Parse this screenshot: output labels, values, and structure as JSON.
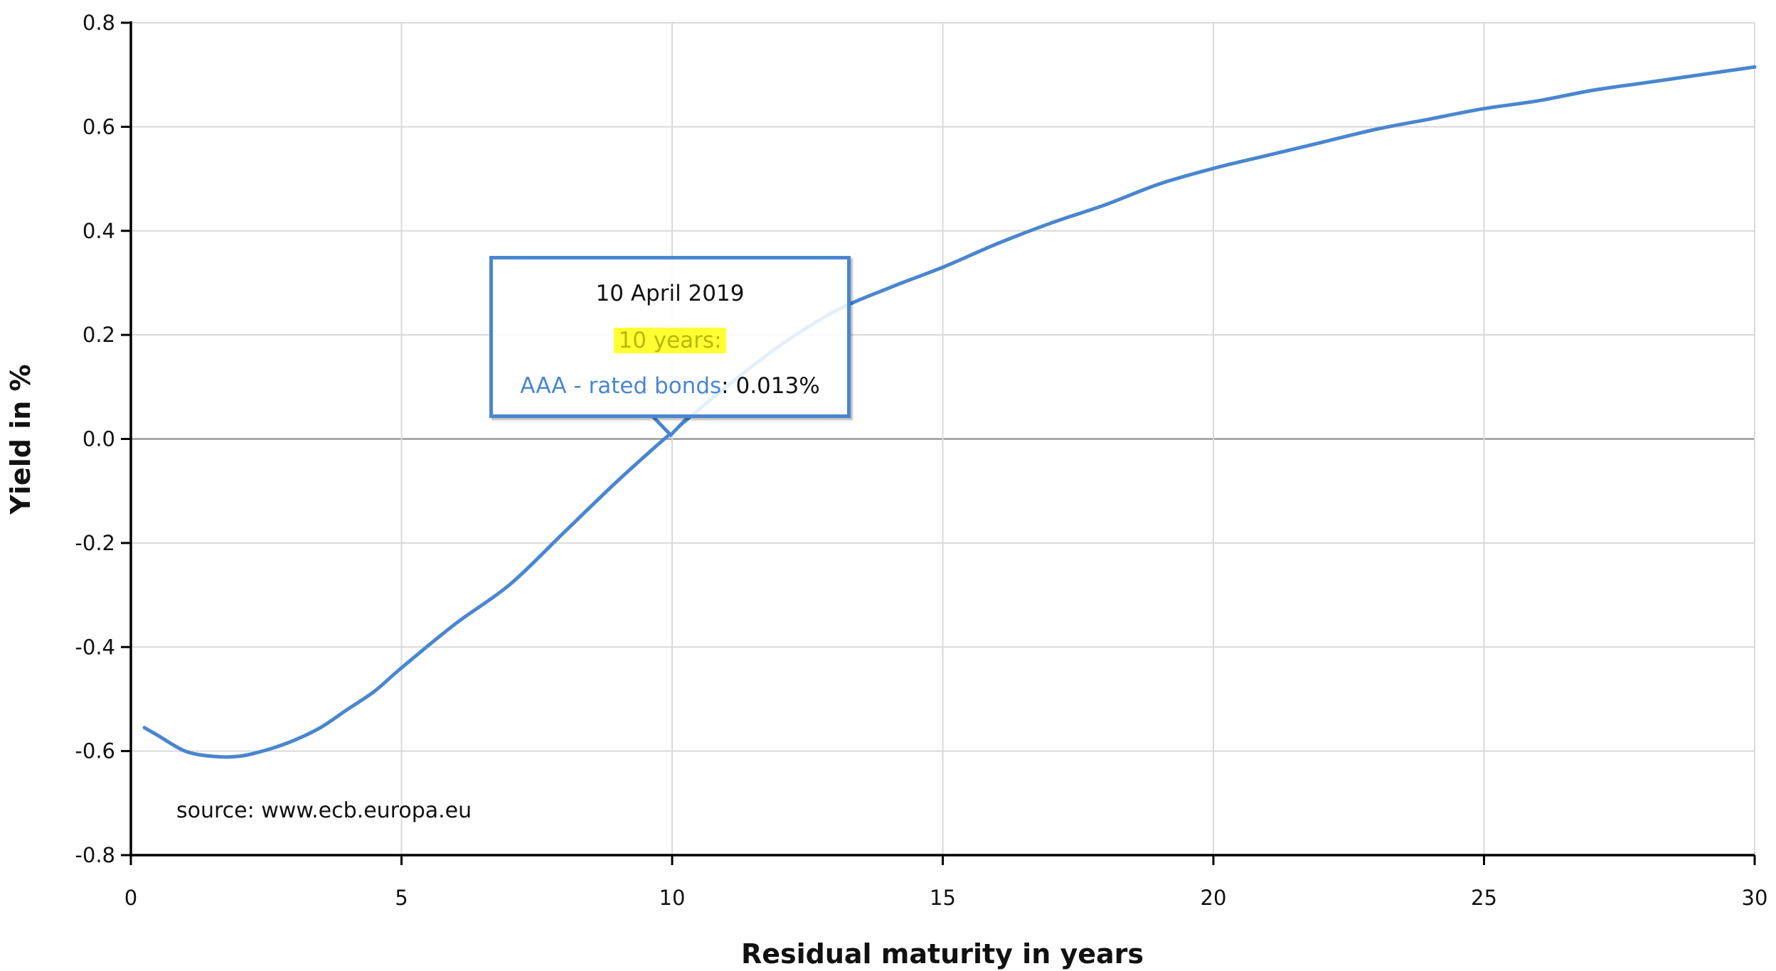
{
  "chart_data": {
    "type": "line",
    "title": "",
    "xlabel": "Residual maturity in years",
    "ylabel": "Yield in %",
    "xlim": [
      0,
      30
    ],
    "ylim": [
      -0.8,
      0.8
    ],
    "x_ticks": [
      "0",
      "5",
      "10",
      "15",
      "20",
      "25",
      "30"
    ],
    "y_ticks": [
      "0.8",
      "0.6",
      "0.4",
      "0.2",
      "0.0",
      "-0.2",
      "-0.4",
      "-0.6",
      "-0.8"
    ],
    "grid": true,
    "legend": "none",
    "series": [
      {
        "name": "AAA - rated bonds",
        "color": "#4a86d0",
        "x": [
          0.25,
          0.5,
          1,
          1.5,
          2,
          2.5,
          3,
          3.5,
          4,
          4.5,
          5,
          6,
          7,
          8,
          9,
          10,
          11,
          12,
          13,
          14,
          15,
          16,
          17,
          18,
          19,
          20,
          21,
          22,
          23,
          24,
          25,
          26,
          27,
          28,
          29,
          30
        ],
        "values": [
          -0.555,
          -0.57,
          -0.6,
          -0.61,
          -0.61,
          -0.598,
          -0.58,
          -0.555,
          -0.52,
          -0.485,
          -0.44,
          -0.355,
          -0.28,
          -0.18,
          -0.08,
          0.013,
          0.1,
          0.18,
          0.245,
          0.29,
          0.33,
          0.375,
          0.415,
          0.45,
          0.49,
          0.52,
          0.545,
          0.57,
          0.595,
          0.615,
          0.635,
          0.65,
          0.67,
          0.685,
          0.7,
          0.715
        ]
      }
    ],
    "annotations": [
      {
        "text": "source: www.ecb.europa.eu",
        "position": "lower-left"
      }
    ],
    "tooltip": {
      "date": "10 April 2019",
      "x_label": "10 years:",
      "series_label": "AAA - rated bonds",
      "separator": ":",
      "value": "0.013%",
      "anchor_x": 10,
      "anchor_y": 0.013
    }
  },
  "axis": {
    "x_title": "Residual maturity in years",
    "y_title": "Yield in %"
  },
  "source_note": "source: www.ecb.europa.eu",
  "colors": {
    "series": "#4a86d0",
    "grid": "#d9d9d9",
    "zero_line": "#999999",
    "axis": "#000000",
    "highlight": "#ffff33"
  }
}
